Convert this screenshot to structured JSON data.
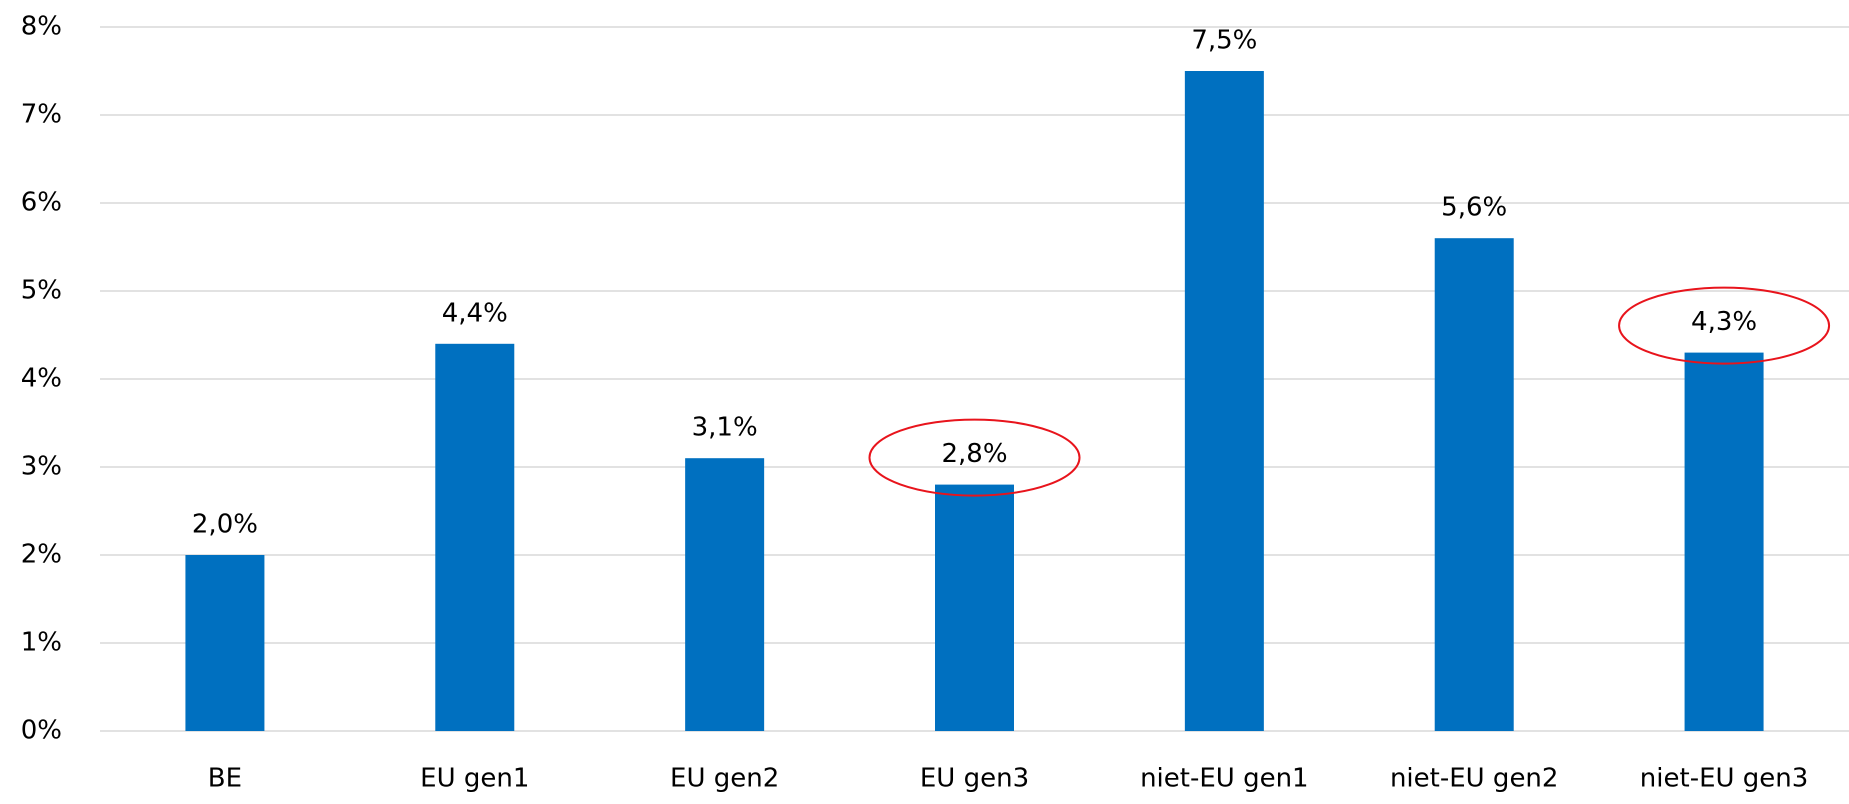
{
  "chart_data": {
    "type": "bar",
    "categories": [
      "BE",
      "EU gen1",
      "EU gen2",
      "EU gen3",
      "niet-EU gen1",
      "niet-EU gen2",
      "niet-EU gen3"
    ],
    "values": [
      2.0,
      4.4,
      3.1,
      2.8,
      7.5,
      5.6,
      4.3
    ],
    "value_labels": [
      "2,0%",
      "4,4%",
      "3,1%",
      "2,8%",
      "7,5%",
      "5,6%",
      "4,3%"
    ],
    "color": "#0070c0",
    "ylim": [
      0,
      8
    ],
    "yticks": [
      {
        "value": 0,
        "label": "0%"
      },
      {
        "value": 1,
        "label": "1%"
      },
      {
        "value": 2,
        "label": "2%"
      },
      {
        "value": 3,
        "label": "3%"
      },
      {
        "value": 4,
        "label": "4%"
      },
      {
        "value": 5,
        "label": "5%"
      },
      {
        "value": 6,
        "label": "6%"
      },
      {
        "value": 7,
        "label": "7%"
      },
      {
        "value": 8,
        "label": "8%"
      }
    ],
    "grid": true
  }
}
